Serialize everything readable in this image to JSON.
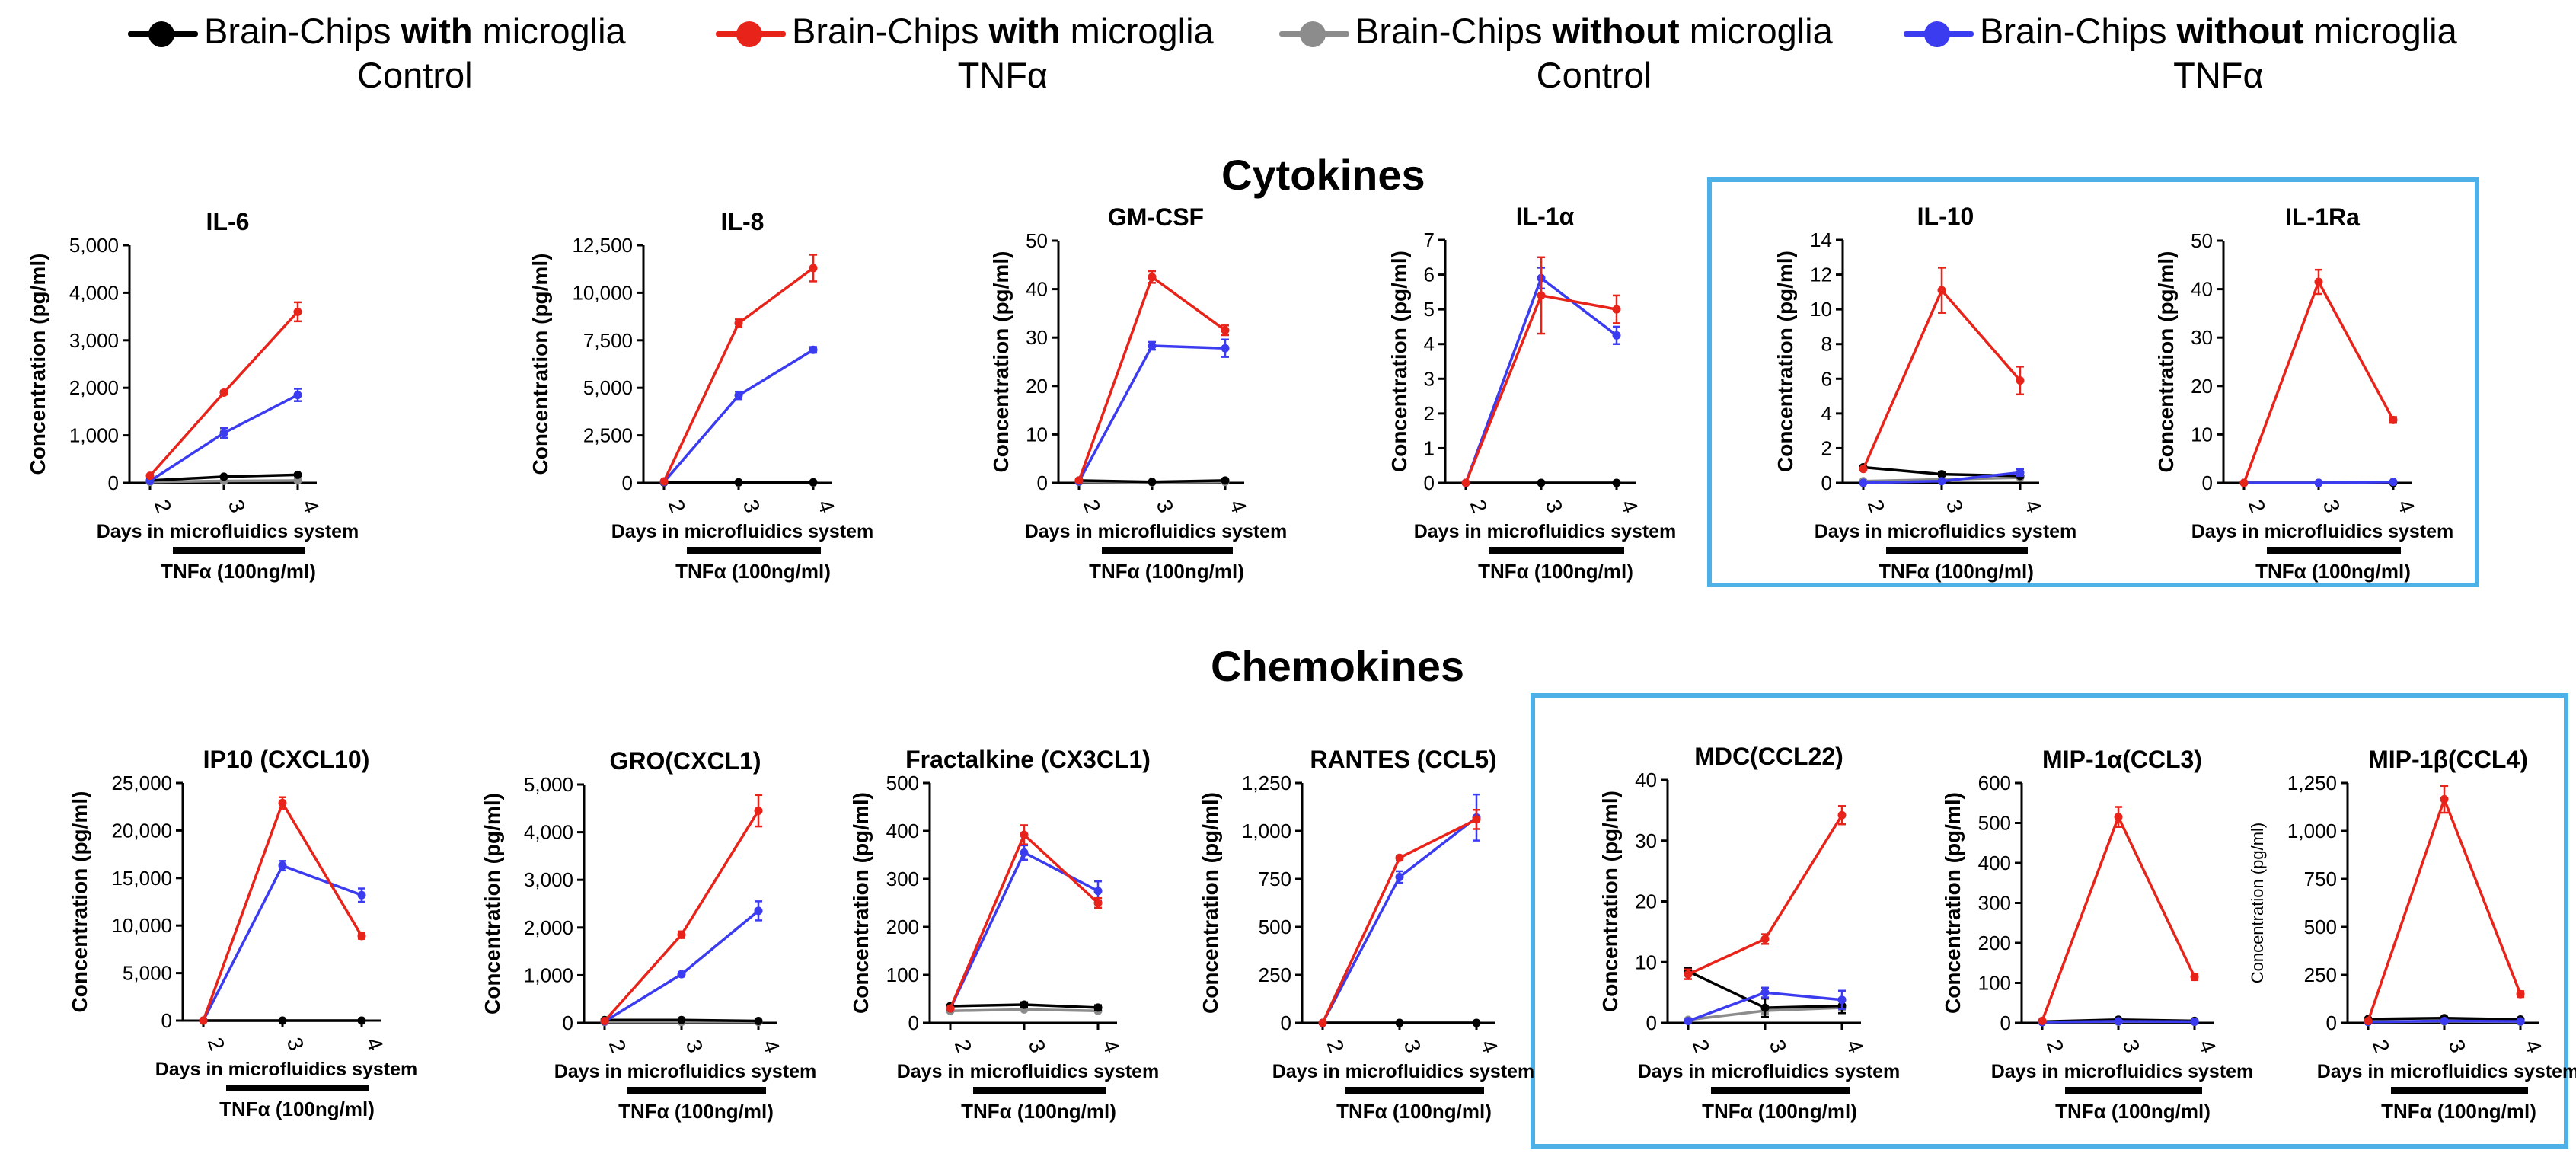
{
  "legend": {
    "items": [
      {
        "pre": "Brain-Chips ",
        "bold": "with",
        "post": " microglia",
        "line2": "Control",
        "color": "#000000"
      },
      {
        "pre": "Brain-Chips ",
        "bold": "with",
        "post": " microglia",
        "line2": "TNFα",
        "color": "#e8231a"
      },
      {
        "pre": "Brain-Chips ",
        "bold": "without",
        "post": " microglia",
        "line2": "Control",
        "color": "#8c8c8c"
      },
      {
        "pre": "Brain-Chips ",
        "bold": "without",
        "post": " microglia",
        "line2": "TNFα",
        "color": "#3b3bf0"
      }
    ]
  },
  "sections": {
    "cytokines": "Cytokines",
    "chemokines": "Chemokines"
  },
  "chart_data": [
    {
      "type": "line",
      "title": "IL-6",
      "ylabel": "Concentration (pg/ml)",
      "xlabel": "Days in microfluidics system",
      "treatment": "TNFα (100ng/ml)",
      "x": [
        "2",
        "3",
        "4"
      ],
      "ylim": [
        0,
        5000
      ],
      "yticks": [
        "0",
        "1,000",
        "2,000",
        "3,000",
        "4,000",
        "5,000"
      ],
      "series": [
        {
          "name": "with microglia Control",
          "values": [
            50,
            130,
            170
          ],
          "err": [
            0,
            0,
            0
          ]
        },
        {
          "name": "with microglia TNFα",
          "values": [
            150,
            1900,
            3600
          ],
          "err": [
            0,
            40,
            200
          ]
        },
        {
          "name": "without microglia Control",
          "values": [
            20,
            40,
            50
          ],
          "err": [
            0,
            0,
            0
          ]
        },
        {
          "name": "without microglia TNFα",
          "values": [
            40,
            1050,
            1850
          ],
          "err": [
            0,
            100,
            130
          ]
        }
      ]
    },
    {
      "type": "line",
      "title": "IL-8",
      "ylabel": "Concentration (pg/ml)",
      "xlabel": "Days in microfluidics system",
      "treatment": "TNFα (100ng/ml)",
      "x": [
        "2",
        "3",
        "4"
      ],
      "ylim": [
        0,
        12500
      ],
      "yticks": [
        "0",
        "2,500",
        "5,000",
        "7,500",
        "10,000",
        "12,500"
      ],
      "series": [
        {
          "name": "with microglia Control",
          "values": [
            30,
            30,
            30
          ],
          "err": [
            0,
            0,
            0
          ]
        },
        {
          "name": "with microglia TNFα",
          "values": [
            80,
            8400,
            11300
          ],
          "err": [
            0,
            200,
            700
          ]
        },
        {
          "name": "without microglia Control",
          "values": [
            10,
            10,
            10
          ],
          "err": [
            0,
            0,
            0
          ]
        },
        {
          "name": "without microglia TNFα",
          "values": [
            50,
            4600,
            7000
          ],
          "err": [
            0,
            200,
            150
          ]
        }
      ]
    },
    {
      "type": "line",
      "title": "GM-CSF",
      "ylabel": "Concentration (pg/ml)",
      "xlabel": "Days in microfluidics system",
      "treatment": "TNFα (100ng/ml)",
      "x": [
        "2",
        "3",
        "4"
      ],
      "ylim": [
        0,
        50
      ],
      "yticks": [
        "0",
        "10",
        "20",
        "30",
        "40",
        "50"
      ],
      "series": [
        {
          "name": "with microglia Control",
          "values": [
            0.5,
            0.2,
            0.5
          ],
          "err": [
            0,
            0,
            0
          ]
        },
        {
          "name": "with microglia TNFα",
          "values": [
            0.5,
            42.5,
            31.5
          ],
          "err": [
            0,
            1.2,
            1.0
          ]
        },
        {
          "name": "without microglia Control",
          "values": [
            0.2,
            0.1,
            0.2
          ],
          "err": [
            0,
            0,
            0
          ]
        },
        {
          "name": "without microglia TNFα",
          "values": [
            0.3,
            28.3,
            27.8
          ],
          "err": [
            0,
            0.8,
            1.8
          ]
        }
      ]
    },
    {
      "type": "line",
      "title": "IL-1α",
      "ylabel": "Concentration (pg/ml)",
      "xlabel": "Days in microfluidics system",
      "treatment": "TNFα (100ng/ml)",
      "x": [
        "2",
        "3",
        "4"
      ],
      "ylim": [
        0,
        7
      ],
      "yticks": [
        "0",
        "1",
        "2",
        "3",
        "4",
        "5",
        "6",
        "7"
      ],
      "series": [
        {
          "name": "with microglia Control",
          "values": [
            0,
            0,
            0
          ],
          "err": [
            0,
            0,
            0
          ]
        },
        {
          "name": "with microglia TNFα",
          "values": [
            0,
            5.4,
            5.0
          ],
          "err": [
            0,
            1.1,
            0.4
          ]
        },
        {
          "name": "without microglia Control",
          "values": [
            0,
            0,
            0
          ],
          "err": [
            0,
            0,
            0
          ]
        },
        {
          "name": "without microglia TNFα",
          "values": [
            0,
            5.9,
            4.25
          ],
          "err": [
            0,
            0.3,
            0.25
          ]
        }
      ]
    },
    {
      "type": "line",
      "title": "IL-10",
      "ylabel": "Concentration (pg/ml)",
      "xlabel": "Days in microfluidics system",
      "treatment": "TNFα (100ng/ml)",
      "x": [
        "2",
        "3",
        "4"
      ],
      "ylim": [
        0,
        14
      ],
      "yticks": [
        "0",
        "2",
        "4",
        "6",
        "8",
        "10",
        "12",
        "14"
      ],
      "series": [
        {
          "name": "with microglia Control",
          "values": [
            0.9,
            0.5,
            0.4
          ],
          "err": [
            0,
            0.1,
            0.1
          ]
        },
        {
          "name": "with microglia TNFα",
          "values": [
            0.8,
            11.1,
            5.9
          ],
          "err": [
            0,
            1.3,
            0.8
          ]
        },
        {
          "name": "without microglia Control",
          "values": [
            0.1,
            0.2,
            0.3
          ],
          "err": [
            0,
            0,
            0
          ]
        },
        {
          "name": "without microglia TNFα",
          "values": [
            0,
            0.1,
            0.6
          ],
          "err": [
            0,
            0,
            0.2
          ]
        }
      ]
    },
    {
      "type": "line",
      "title": "IL-1Ra",
      "ylabel": "Concentration (pg/ml)",
      "xlabel": "Days in microfluidics system",
      "treatment": "TNFα (100ng/ml)",
      "x": [
        "2",
        "3",
        "4"
      ],
      "ylim": [
        0,
        50
      ],
      "yticks": [
        "0",
        "10",
        "20",
        "30",
        "40",
        "50"
      ],
      "series": [
        {
          "name": "with microglia Control",
          "values": [
            0,
            0,
            0
          ],
          "err": [
            0,
            0,
            0
          ]
        },
        {
          "name": "with microglia TNFα",
          "values": [
            0,
            41.5,
            13
          ],
          "err": [
            0,
            2.5,
            0.6
          ]
        },
        {
          "name": "without microglia Control",
          "values": [
            0,
            0,
            0
          ],
          "err": [
            0,
            0,
            0
          ]
        },
        {
          "name": "without microglia TNFα",
          "values": [
            0,
            0,
            0.2
          ],
          "err": [
            0,
            0,
            0
          ]
        }
      ]
    },
    {
      "type": "line",
      "title": "IP10 (CXCL10)",
      "ylabel": "Concentration (pg/ml)",
      "xlabel": "Days in microfluidics system",
      "treatment": "TNFα (100ng/ml)",
      "x": [
        "2",
        "3",
        "4"
      ],
      "ylim": [
        0,
        25000
      ],
      "yticks": [
        "0",
        "5,000",
        "10,000",
        "15,000",
        "20,000",
        "25,000"
      ],
      "series": [
        {
          "name": "with microglia Control",
          "values": [
            0,
            0,
            0
          ],
          "err": [
            0,
            0,
            0
          ]
        },
        {
          "name": "with microglia TNFα",
          "values": [
            0,
            22900,
            8900
          ],
          "err": [
            0,
            600,
            300
          ]
        },
        {
          "name": "without microglia Control",
          "values": [
            0,
            0,
            0
          ],
          "err": [
            0,
            0,
            0
          ]
        },
        {
          "name": "without microglia TNFα",
          "values": [
            0,
            16300,
            13200
          ],
          "err": [
            0,
            500,
            700
          ]
        }
      ]
    },
    {
      "type": "line",
      "title": "GRO(CXCL1)",
      "ylabel": "Concentration (pg/ml)",
      "xlabel": "Days in microfluidics system",
      "treatment": "TNFα (100ng/ml)",
      "x": [
        "2",
        "3",
        "4"
      ],
      "ylim": [
        0,
        5000
      ],
      "yticks": [
        "0",
        "1,000",
        "2,000",
        "3,000",
        "4,000",
        "5,000"
      ],
      "series": [
        {
          "name": "with microglia Control",
          "values": [
            60,
            60,
            40
          ],
          "err": [
            0,
            0,
            0
          ]
        },
        {
          "name": "with microglia TNFα",
          "values": [
            40,
            1850,
            4450
          ],
          "err": [
            0,
            70,
            330
          ]
        },
        {
          "name": "without microglia Control",
          "values": [
            20,
            20,
            20
          ],
          "err": [
            0,
            0,
            0
          ]
        },
        {
          "name": "without microglia TNFα",
          "values": [
            30,
            1020,
            2350
          ],
          "err": [
            0,
            50,
            200
          ]
        }
      ]
    },
    {
      "type": "line",
      "title": "Fractalkine (CX3CL1)",
      "ylabel": "Concentration (pg/ml)",
      "xlabel": "Days in microfluidics system",
      "treatment": "TNFα (100ng/ml)",
      "x": [
        "2",
        "3",
        "4"
      ],
      "ylim": [
        0,
        500
      ],
      "yticks": [
        "0",
        "100",
        "200",
        "300",
        "400",
        "500"
      ],
      "series": [
        {
          "name": "with microglia Control",
          "values": [
            35,
            38,
            32
          ],
          "err": [
            0,
            5,
            5
          ]
        },
        {
          "name": "with microglia TNFα",
          "values": [
            30,
            392,
            250
          ],
          "err": [
            0,
            20,
            10
          ]
        },
        {
          "name": "without microglia Control",
          "values": [
            25,
            28,
            25
          ],
          "err": [
            0,
            0,
            0
          ]
        },
        {
          "name": "without microglia TNFα",
          "values": [
            30,
            355,
            275
          ],
          "err": [
            0,
            15,
            20
          ]
        }
      ]
    },
    {
      "type": "line",
      "title": "RANTES (CCL5)",
      "ylabel": "Concentration (pg/ml)",
      "xlabel": "Days in microfluidics system",
      "treatment": "TNFα (100ng/ml)",
      "x": [
        "2",
        "3",
        "4"
      ],
      "ylim": [
        0,
        1250
      ],
      "yticks": [
        "0",
        "250",
        "500",
        "750",
        "1,000",
        "1,250"
      ],
      "series": [
        {
          "name": "with microglia Control",
          "values": [
            0,
            0,
            0
          ],
          "err": [
            0,
            0,
            0
          ]
        },
        {
          "name": "with microglia TNFα",
          "values": [
            0,
            860,
            1060
          ],
          "err": [
            0,
            10,
            50
          ]
        },
        {
          "name": "without microglia Control",
          "values": [
            0,
            0,
            0
          ],
          "err": [
            0,
            0,
            0
          ]
        },
        {
          "name": "without microglia TNFα",
          "values": [
            0,
            760,
            1070
          ],
          "err": [
            0,
            30,
            120
          ]
        }
      ]
    },
    {
      "type": "line",
      "title": "MDC(CCL22)",
      "ylabel": "Concentration (pg/ml)",
      "xlabel": "Days in microfluidics system",
      "treatment": "TNFα (100ng/ml)",
      "x": [
        "2",
        "3",
        "4"
      ],
      "ylim": [
        0,
        40
      ],
      "yticks": [
        "0",
        "10",
        "20",
        "30",
        "40"
      ],
      "series": [
        {
          "name": "with microglia Control",
          "values": [
            8.5,
            2.5,
            2.8
          ],
          "err": [
            0.5,
            1.5,
            1.2
          ]
        },
        {
          "name": "with microglia TNFα",
          "values": [
            8.0,
            13.8,
            34.2
          ],
          "err": [
            0.8,
            0.8,
            1.5
          ]
        },
        {
          "name": "without microglia Control",
          "values": [
            0.5,
            2.0,
            2.5
          ],
          "err": [
            0,
            0.5,
            0.5
          ]
        },
        {
          "name": "without microglia TNFα",
          "values": [
            0.3,
            5.0,
            3.8
          ],
          "err": [
            0,
            0.8,
            1.5
          ]
        }
      ]
    },
    {
      "type": "line",
      "title": "MIP-1α(CCL3)",
      "ylabel": "Concentration (pg/ml)",
      "xlabel": "Days in microfluidics system",
      "treatment": "TNFα (100ng/ml)",
      "x": [
        "2",
        "3",
        "4"
      ],
      "ylim": [
        0,
        600
      ],
      "yticks": [
        "0",
        "100",
        "200",
        "300",
        "400",
        "500",
        "600"
      ],
      "series": [
        {
          "name": "with microglia Control",
          "values": [
            3,
            8,
            5
          ],
          "err": [
            0,
            3,
            2
          ]
        },
        {
          "name": "with microglia TNFα",
          "values": [
            5,
            515,
            115
          ],
          "err": [
            0,
            25,
            8
          ]
        },
        {
          "name": "without microglia Control",
          "values": [
            2,
            3,
            3
          ],
          "err": [
            0,
            0,
            0
          ]
        },
        {
          "name": "without microglia TNFα",
          "values": [
            2,
            4,
            3
          ],
          "err": [
            0,
            0,
            0
          ]
        }
      ]
    },
    {
      "type": "line",
      "title": "MIP-1β(CCL4)",
      "ylabel": "Concentration (pg/ml)",
      "xlabel": "Days in microfluidics system",
      "treatment": "TNFα (100ng/ml)",
      "x": [
        "2",
        "3",
        "4"
      ],
      "ylim": [
        0,
        1250
      ],
      "yticks": [
        "0",
        "250",
        "500",
        "750",
        "1,000",
        "1,250"
      ],
      "series": [
        {
          "name": "with microglia Control",
          "values": [
            20,
            25,
            18
          ],
          "err": [
            0,
            3,
            2
          ]
        },
        {
          "name": "with microglia TNFα",
          "values": [
            10,
            1165,
            150
          ],
          "err": [
            0,
            70,
            15
          ]
        },
        {
          "name": "without microglia Control",
          "values": [
            5,
            8,
            6
          ],
          "err": [
            0,
            0,
            0
          ]
        },
        {
          "name": "without microglia TNFα",
          "values": [
            5,
            10,
            8
          ],
          "err": [
            0,
            0,
            0
          ]
        }
      ]
    }
  ]
}
